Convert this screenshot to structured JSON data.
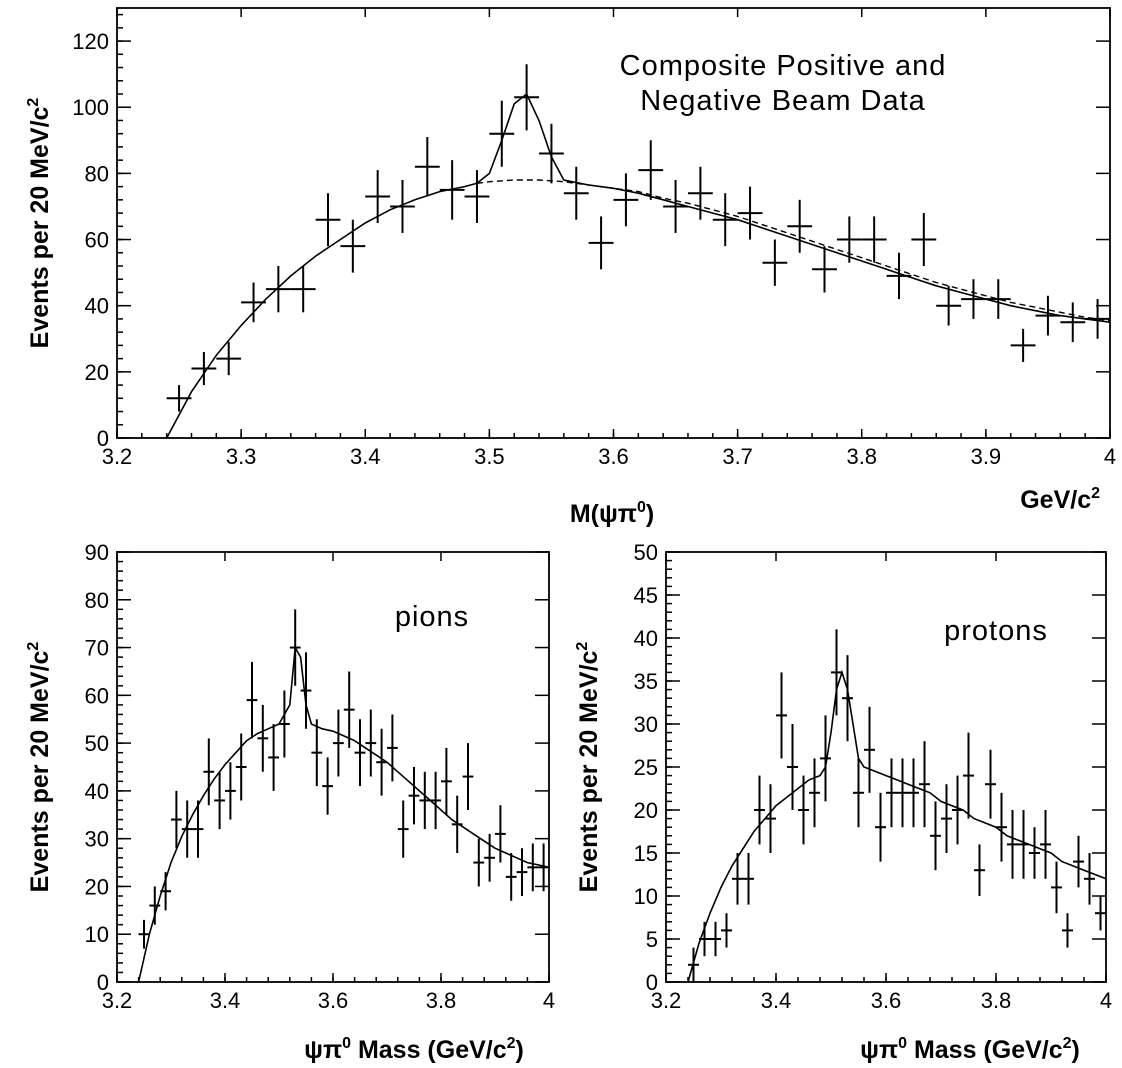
{
  "chart_data": [
    {
      "type": "scatter",
      "id": "composite",
      "annotation_lines": [
        "Composite Positive and",
        "Negative Beam Data"
      ],
      "ylabel_main": "Events per 20 MeV/c",
      "ylabel_sup": "2",
      "xlabel_main": "M(ψπ",
      "xlabel_sup": "0",
      "xlabel_end": ")",
      "xunit_main": "GeV/c",
      "xunit_sup": "2",
      "xlim": [
        3.2,
        4.0
      ],
      "ylim": [
        0,
        130
      ],
      "xticks": [
        3.2,
        3.3,
        3.4,
        3.5,
        3.6,
        3.7,
        3.8,
        3.9,
        4.0
      ],
      "xtick_labels": [
        "3.2",
        "3.3",
        "3.4",
        "3.5",
        "3.6",
        "3.7",
        "3.8",
        "3.9",
        "4"
      ],
      "yticks": [
        0,
        20,
        40,
        60,
        80,
        100,
        120
      ],
      "ytick_labels": [
        "0",
        "20",
        "40",
        "60",
        "80",
        "100",
        "120"
      ],
      "bin_halfwidth": 0.01,
      "points": {
        "x": [
          3.25,
          3.27,
          3.29,
          3.31,
          3.33,
          3.35,
          3.37,
          3.39,
          3.41,
          3.43,
          3.45,
          3.47,
          3.49,
          3.51,
          3.53,
          3.55,
          3.57,
          3.59,
          3.61,
          3.63,
          3.65,
          3.67,
          3.69,
          3.71,
          3.73,
          3.75,
          3.77,
          3.79,
          3.81,
          3.83,
          3.85,
          3.87,
          3.89,
          3.91,
          3.93,
          3.95,
          3.97,
          3.99
        ],
        "y": [
          12,
          21,
          24,
          41,
          45,
          45,
          66,
          58,
          73,
          70,
          82,
          75,
          73,
          92,
          103,
          86,
          74,
          59,
          72,
          81,
          70,
          74,
          66,
          68,
          53,
          64,
          51,
          60,
          60,
          49,
          60,
          40,
          42,
          42,
          28,
          37,
          35,
          36
        ],
        "yerr": [
          4,
          5,
          5,
          6,
          7,
          7,
          8,
          8,
          8,
          8,
          9,
          9,
          8,
          10,
          10,
          9,
          8,
          8,
          8,
          9,
          8,
          8,
          8,
          8,
          7,
          8,
          7,
          7,
          7,
          7,
          8,
          6,
          6,
          6,
          5,
          6,
          6,
          6
        ]
      },
      "fit": {
        "x": [
          3.24,
          3.26,
          3.28,
          3.3,
          3.32,
          3.34,
          3.36,
          3.38,
          3.4,
          3.42,
          3.44,
          3.46,
          3.48,
          3.49,
          3.5,
          3.51,
          3.52,
          3.53,
          3.54,
          3.55,
          3.56,
          3.58,
          3.6,
          3.62,
          3.64,
          3.66,
          3.68,
          3.7,
          3.72,
          3.74,
          3.76,
          3.78,
          3.8,
          3.82,
          3.84,
          3.86,
          3.88,
          3.9,
          3.92,
          3.94,
          3.96,
          3.98,
          4.0
        ],
        "y": [
          0,
          14,
          25,
          34,
          42,
          49,
          55,
          60,
          65,
          69,
          72,
          74.5,
          76,
          77,
          80,
          90,
          101,
          104,
          96,
          85,
          78,
          76.5,
          75.5,
          74,
          72,
          70,
          68,
          66,
          63.5,
          61,
          58.5,
          56,
          53.5,
          51,
          48.5,
          46,
          44,
          42,
          40,
          38.5,
          37,
          36,
          35
        ]
      },
      "background": {
        "x": [
          3.49,
          3.5,
          3.52,
          3.54,
          3.56,
          3.58,
          3.6,
          3.62,
          3.64,
          3.66,
          3.68,
          3.7,
          3.72,
          3.74,
          3.76,
          3.78,
          3.8,
          3.82,
          3.84,
          3.86,
          3.88,
          3.9,
          3.92,
          3.94,
          3.96,
          3.98,
          4.0
        ],
        "y": [
          77,
          77.5,
          78,
          78,
          77.5,
          76.5,
          75.5,
          74.5,
          72.5,
          71,
          69,
          67,
          64.5,
          62,
          59.5,
          57,
          54.5,
          52,
          49.5,
          47,
          45,
          43,
          41,
          39.5,
          38,
          36.5,
          35.5
        ]
      }
    },
    {
      "type": "scatter",
      "id": "pions",
      "annotation_lines": [
        "pions"
      ],
      "ylabel_main": "Events per 20 MeV/c",
      "ylabel_sup": "2",
      "xlabel_main": "ψπ",
      "xlabel_sup": "0",
      "xlabel_end": " Mass (GeV/c",
      "xlabel_sup2": "2",
      "xlabel_end2": ")",
      "xlim": [
        3.2,
        4.0
      ],
      "ylim": [
        0,
        90
      ],
      "xticks": [
        3.2,
        3.4,
        3.6,
        3.8,
        4.0
      ],
      "xtick_labels": [
        "3.2",
        "3.4",
        "3.6",
        "3.8",
        "4"
      ],
      "yticks": [
        0,
        10,
        20,
        30,
        40,
        50,
        60,
        70,
        80,
        90
      ],
      "ytick_labels": [
        "0",
        "10",
        "20",
        "30",
        "40",
        "50",
        "60",
        "70",
        "80",
        "90"
      ],
      "bin_halfwidth": 0.01,
      "points": {
        "x": [
          3.25,
          3.27,
          3.29,
          3.31,
          3.33,
          3.35,
          3.37,
          3.39,
          3.41,
          3.43,
          3.45,
          3.47,
          3.49,
          3.51,
          3.53,
          3.55,
          3.57,
          3.59,
          3.61,
          3.63,
          3.65,
          3.67,
          3.69,
          3.71,
          3.73,
          3.75,
          3.77,
          3.79,
          3.81,
          3.83,
          3.85,
          3.87,
          3.89,
          3.91,
          3.93,
          3.95,
          3.97,
          3.99
        ],
        "y": [
          10,
          16,
          19,
          34,
          32,
          32,
          44,
          38,
          40,
          45,
          59,
          51,
          47,
          54,
          70,
          61,
          48,
          41,
          50,
          57,
          48,
          50,
          46,
          49,
          32,
          39,
          38,
          38,
          42,
          33,
          43,
          25,
          26,
          31,
          22,
          23,
          24,
          24
        ],
        "yerr": [
          3,
          4,
          4,
          6,
          6,
          6,
          7,
          6,
          6,
          7,
          8,
          7,
          7,
          7,
          8,
          8,
          7,
          6,
          7,
          8,
          7,
          7,
          7,
          7,
          6,
          6,
          6,
          6,
          7,
          6,
          7,
          5,
          5,
          6,
          5,
          5,
          5,
          5
        ]
      },
      "fit": {
        "x": [
          3.24,
          3.26,
          3.28,
          3.3,
          3.32,
          3.34,
          3.36,
          3.38,
          3.4,
          3.42,
          3.44,
          3.46,
          3.48,
          3.5,
          3.52,
          3.53,
          3.54,
          3.55,
          3.56,
          3.58,
          3.6,
          3.62,
          3.64,
          3.66,
          3.68,
          3.7,
          3.72,
          3.74,
          3.76,
          3.78,
          3.8,
          3.82,
          3.84,
          3.86,
          3.88,
          3.9,
          3.92,
          3.94,
          3.96,
          3.98,
          4.0
        ],
        "y": [
          0,
          10,
          18,
          25,
          30.5,
          35,
          39,
          42.5,
          45.5,
          48,
          50.5,
          52,
          53,
          54,
          58,
          70,
          68,
          58,
          54,
          53,
          52.5,
          51.5,
          50.5,
          49,
          47.5,
          46,
          44,
          42,
          40,
          38,
          36,
          34,
          32.5,
          31,
          29.5,
          28,
          27,
          26,
          25,
          24.5,
          24
        ]
      }
    },
    {
      "type": "scatter",
      "id": "protons",
      "annotation_lines": [
        "protons"
      ],
      "ylabel_main": "Events per 20 MeV/c",
      "ylabel_sup": "2",
      "xlabel_main": "ψπ",
      "xlabel_sup": "0",
      "xlabel_end": " Mass (GeV/c",
      "xlabel_sup2": "2",
      "xlabel_end2": ")",
      "xlim": [
        3.2,
        4.0
      ],
      "ylim": [
        0,
        50
      ],
      "xticks": [
        3.2,
        3.4,
        3.6,
        3.8,
        4.0
      ],
      "xtick_labels": [
        "3.2",
        "3.4",
        "3.6",
        "3.8",
        "4"
      ],
      "yticks": [
        0,
        5,
        10,
        15,
        20,
        25,
        30,
        35,
        40,
        45,
        50
      ],
      "ytick_labels": [
        "0",
        "5",
        "10",
        "15",
        "20",
        "25",
        "30",
        "35",
        "40",
        "45",
        "50"
      ],
      "bin_halfwidth": 0.01,
      "points": {
        "x": [
          3.25,
          3.27,
          3.29,
          3.31,
          3.33,
          3.35,
          3.37,
          3.39,
          3.41,
          3.43,
          3.45,
          3.47,
          3.49,
          3.51,
          3.53,
          3.55,
          3.57,
          3.59,
          3.61,
          3.63,
          3.65,
          3.67,
          3.69,
          3.71,
          3.73,
          3.75,
          3.77,
          3.79,
          3.81,
          3.83,
          3.85,
          3.87,
          3.89,
          3.91,
          3.93,
          3.95,
          3.97,
          3.99
        ],
        "y": [
          2,
          5,
          5,
          6,
          12,
          12,
          20,
          19,
          31,
          25,
          20,
          22,
          26,
          36,
          33,
          22,
          27,
          18,
          22,
          22,
          22,
          23,
          17,
          19,
          20,
          24,
          13,
          23,
          18,
          16,
          16,
          15,
          16,
          11,
          6,
          14,
          12,
          8
        ],
        "yerr": [
          2,
          2,
          2,
          2,
          3,
          3,
          4,
          4,
          5,
          5,
          4,
          4,
          5,
          5,
          5,
          4,
          5,
          4,
          4,
          4,
          4,
          5,
          4,
          4,
          4,
          5,
          3,
          4,
          4,
          4,
          4,
          3,
          4,
          3,
          2,
          3,
          3,
          2
        ]
      },
      "fit": {
        "x": [
          3.24,
          3.26,
          3.28,
          3.3,
          3.32,
          3.34,
          3.36,
          3.38,
          3.4,
          3.42,
          3.44,
          3.46,
          3.48,
          3.49,
          3.5,
          3.51,
          3.52,
          3.53,
          3.54,
          3.55,
          3.56,
          3.58,
          3.6,
          3.62,
          3.64,
          3.66,
          3.68,
          3.7,
          3.72,
          3.74,
          3.76,
          3.78,
          3.8,
          3.82,
          3.84,
          3.86,
          3.88,
          3.9,
          3.92,
          3.94,
          3.96,
          3.98,
          4.0
        ],
        "y": [
          0,
          4.5,
          8,
          11,
          13.5,
          15.5,
          17.5,
          19,
          20.5,
          21.5,
          22.5,
          23.5,
          24,
          25,
          29,
          34,
          36,
          34,
          30,
          26,
          25,
          24.5,
          24,
          23.5,
          23,
          22.5,
          22,
          21,
          20.5,
          20,
          19,
          18.5,
          18,
          17,
          16.5,
          16,
          15.5,
          15,
          14,
          13.5,
          13,
          12.5,
          12
        ]
      }
    }
  ]
}
